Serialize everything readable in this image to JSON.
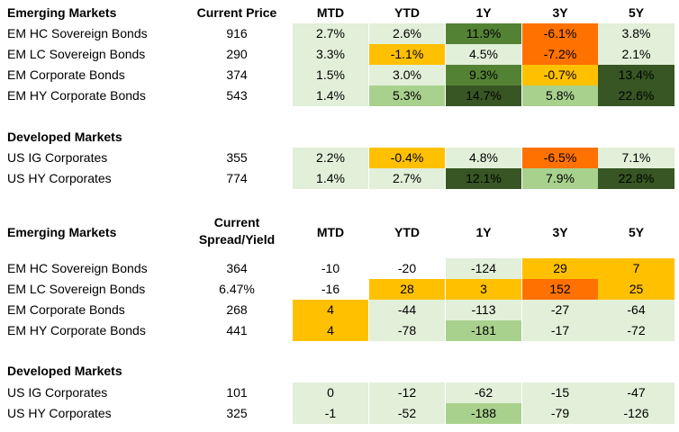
{
  "colors": {
    "light": "#e2efd9",
    "medium": "#a9d18e",
    "dark_mid": "#548235",
    "dark": "#375623",
    "yellow": "#ffc000",
    "orange": "#ff7100",
    "white": "#ffffff"
  },
  "columns": [
    "MTD",
    "YTD",
    "1Y",
    "3Y",
    "5Y"
  ],
  "price_table": {
    "em_header": "Emerging Markets",
    "price_header": "Current Price",
    "em_rows": [
      {
        "name": "EM HC Sovereign Bonds",
        "value": "916",
        "cells": [
          {
            "t": "2.7%",
            "c": "light"
          },
          {
            "t": "2.6%",
            "c": "light"
          },
          {
            "t": "11.9%",
            "c": "dark_mid"
          },
          {
            "t": "-6.1%",
            "c": "orange"
          },
          {
            "t": "3.8%",
            "c": "light"
          }
        ]
      },
      {
        "name": "EM LC Sovereign Bonds",
        "value": "290",
        "cells": [
          {
            "t": "3.3%",
            "c": "light"
          },
          {
            "t": "-1.1%",
            "c": "yellow"
          },
          {
            "t": "4.5%",
            "c": "light"
          },
          {
            "t": "-7.2%",
            "c": "orange"
          },
          {
            "t": "2.1%",
            "c": "light"
          }
        ]
      },
      {
        "name": "EM Corporate Bonds",
        "value": "374",
        "cells": [
          {
            "t": "1.5%",
            "c": "light"
          },
          {
            "t": "3.0%",
            "c": "light"
          },
          {
            "t": "9.3%",
            "c": "dark_mid"
          },
          {
            "t": "-0.7%",
            "c": "yellow"
          },
          {
            "t": "13.4%",
            "c": "dark"
          }
        ]
      },
      {
        "name": "EM HY Corporate Bonds",
        "value": "543",
        "cells": [
          {
            "t": "1.4%",
            "c": "light"
          },
          {
            "t": "5.3%",
            "c": "medium"
          },
          {
            "t": "14.7%",
            "c": "dark"
          },
          {
            "t": "5.8%",
            "c": "medium"
          },
          {
            "t": "22.6%",
            "c": "dark"
          }
        ]
      }
    ],
    "dm_header": "Developed Markets",
    "dm_rows": [
      {
        "name": "US IG Corporates",
        "value": "355",
        "cells": [
          {
            "t": "2.2%",
            "c": "light"
          },
          {
            "t": "-0.4%",
            "c": "yellow"
          },
          {
            "t": "4.8%",
            "c": "light"
          },
          {
            "t": "-6.5%",
            "c": "orange"
          },
          {
            "t": "7.1%",
            "c": "light"
          }
        ]
      },
      {
        "name": "US HY Corporates",
        "value": "774",
        "cells": [
          {
            "t": "1.4%",
            "c": "light"
          },
          {
            "t": "2.7%",
            "c": "light"
          },
          {
            "t": "12.1%",
            "c": "dark"
          },
          {
            "t": "7.9%",
            "c": "medium"
          },
          {
            "t": "22.8%",
            "c": "dark"
          }
        ]
      }
    ]
  },
  "spread_table": {
    "em_header": "Emerging Markets",
    "spread_header_line1": "Current",
    "spread_header_line2": "Spread/Yield",
    "em_rows": [
      {
        "name": "EM HC Sovereign Bonds",
        "value": "364",
        "cells": [
          {
            "t": "-10",
            "c": "white"
          },
          {
            "t": "-20",
            "c": "white"
          },
          {
            "t": "-124",
            "c": "light"
          },
          {
            "t": "29",
            "c": "yellow"
          },
          {
            "t": "7",
            "c": "yellow"
          }
        ]
      },
      {
        "name": "EM LC Sovereign Bonds",
        "value": "6.47%",
        "cells": [
          {
            "t": "-16",
            "c": "white"
          },
          {
            "t": "28",
            "c": "yellow"
          },
          {
            "t": "3",
            "c": "yellow"
          },
          {
            "t": "152",
            "c": "orange"
          },
          {
            "t": "25",
            "c": "yellow"
          }
        ]
      },
      {
        "name": "EM Corporate Bonds",
        "value": "268",
        "cells": [
          {
            "t": "4",
            "c": "yellow"
          },
          {
            "t": "-44",
            "c": "light"
          },
          {
            "t": "-113",
            "c": "light"
          },
          {
            "t": "-27",
            "c": "light"
          },
          {
            "t": "-64",
            "c": "light"
          }
        ]
      },
      {
        "name": "EM HY Corporate Bonds",
        "value": "441",
        "cells": [
          {
            "t": "4",
            "c": "yellow"
          },
          {
            "t": "-78",
            "c": "light"
          },
          {
            "t": "-181",
            "c": "medium"
          },
          {
            "t": "-17",
            "c": "light"
          },
          {
            "t": "-72",
            "c": "light"
          }
        ]
      }
    ],
    "dm_header": "Developed Markets",
    "dm_rows": [
      {
        "name": "US IG Corporates",
        "value": "101",
        "cells": [
          {
            "t": "0",
            "c": "light"
          },
          {
            "t": "-12",
            "c": "light"
          },
          {
            "t": "-62",
            "c": "light"
          },
          {
            "t": "-15",
            "c": "light"
          },
          {
            "t": "-47",
            "c": "light"
          }
        ]
      },
      {
        "name": "US HY Corporates",
        "value": "325",
        "cells": [
          {
            "t": "-1",
            "c": "light"
          },
          {
            "t": "-52",
            "c": "light"
          },
          {
            "t": "-188",
            "c": "medium"
          },
          {
            "t": "-79",
            "c": "light"
          },
          {
            "t": "-126",
            "c": "light"
          }
        ]
      }
    ]
  }
}
